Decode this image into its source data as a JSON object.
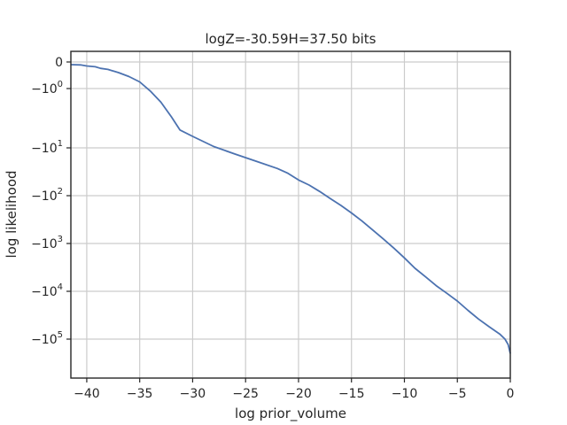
{
  "chart_data": {
    "type": "line",
    "title": "logZ=-30.59H=37.50 bits",
    "xlabel": "log prior_volume",
    "ylabel": "log likelihood",
    "xlim": [
      -41.5,
      0
    ],
    "yscale": "symlog",
    "grid": true,
    "line_color": "#4c72b0",
    "x_ticks": [
      {
        "value": -40,
        "label": "−40"
      },
      {
        "value": -35,
        "label": "−35"
      },
      {
        "value": -30,
        "label": "−30"
      },
      {
        "value": -25,
        "label": "−25"
      },
      {
        "value": -20,
        "label": "−20"
      },
      {
        "value": -15,
        "label": "−15"
      },
      {
        "value": -10,
        "label": "−10"
      },
      {
        "value": -5,
        "label": "−5"
      },
      {
        "value": 0,
        "label": "0"
      }
    ],
    "y_ticks": [
      {
        "value": 0,
        "base": "0",
        "exp": ""
      },
      {
        "value": -1,
        "base": "−10",
        "exp": "0"
      },
      {
        "value": -10,
        "base": "−10",
        "exp": "1"
      },
      {
        "value": -100,
        "base": "−10",
        "exp": "2"
      },
      {
        "value": -1000,
        "base": "−10",
        "exp": "3"
      },
      {
        "value": -10000,
        "base": "−10",
        "exp": "4"
      },
      {
        "value": -100000,
        "base": "−10",
        "exp": "5"
      }
    ],
    "series": [
      {
        "x": [
          -41.5,
          -40.6,
          -40.0,
          -39.2,
          -38.7,
          -38.0,
          -37.0,
          -36.0,
          -35.0,
          -34.0,
          -33.0,
          -32.0,
          -31.2,
          -30.0,
          -28.0,
          -26.0,
          -24.0,
          -22.0,
          -21.0,
          -20.0,
          -19.0,
          -18.0,
          -17.0,
          -16.0,
          -15.0,
          -14.0,
          -13.0,
          -12.0,
          -11.0,
          -10.0,
          -9.0,
          -8.0,
          -7.0,
          -6.0,
          -5.0,
          -4.0,
          -3.0,
          -2.0,
          -1.0,
          -0.5,
          -0.2,
          0.0
        ],
        "y": [
          -0.1,
          -0.11,
          -0.15,
          -0.18,
          -0.24,
          -0.28,
          -0.4,
          -0.55,
          -0.75,
          -1.1,
          -1.7,
          -3.0,
          -5.0,
          -6.4,
          -9.5,
          -13.5,
          -19,
          -27,
          -34,
          -47,
          -60,
          -82,
          -115,
          -160,
          -230,
          -340,
          -520,
          -800,
          -1250,
          -2000,
          -3300,
          -5000,
          -7600,
          -11000,
          -16000,
          -25000,
          -38000,
          -55000,
          -78000,
          -100000,
          -130000,
          -200000
        ]
      }
    ]
  }
}
